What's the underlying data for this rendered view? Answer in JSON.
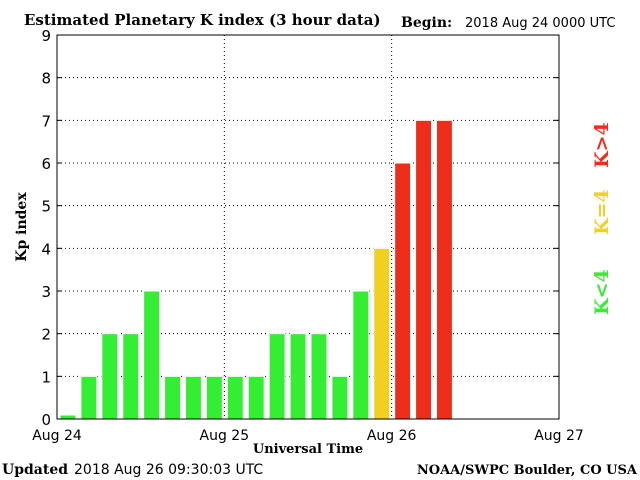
{
  "header": {
    "title": "Estimated Planetary K index (3 hour data)",
    "begin_label": "Begin:",
    "begin_value": "2018 Aug 24 0000 UTC"
  },
  "footer": {
    "updated_label": "Updated",
    "updated_value": "2018 Aug 26 09:30:03 UTC",
    "credit": "NOAA/SWPC Boulder, CO USA"
  },
  "legend": [
    {
      "label": "K<4",
      "color": "#33ee33"
    },
    {
      "label": "K=4",
      "color": "#f0d020"
    },
    {
      "label": "K>4",
      "color": "#ee2d1a"
    }
  ],
  "colors": {
    "below_4": "#33ee33",
    "equal_4": "#f0d020",
    "above_4": "#ee2d1a",
    "bar_outline": "#ffffff",
    "grid": "#000000"
  },
  "chart_data": {
    "type": "bar",
    "title": "Estimated Planetary K index (3 hour data)",
    "xlabel": "Universal Time",
    "ylabel": "Kp index",
    "ylim": [
      0,
      9
    ],
    "yticks": [
      "0",
      "1",
      "2",
      "3",
      "4",
      "5",
      "6",
      "7",
      "8",
      "9"
    ],
    "xticks": [
      "Aug 24",
      "Aug 25",
      "Aug 26",
      "Aug 27"
    ],
    "interval_hours": 3,
    "days_shown": 3,
    "grid": "dotted",
    "legend_placement": "right",
    "values": [
      0,
      1,
      2,
      2,
      3,
      1,
      1,
      1,
      1,
      1,
      2,
      2,
      2,
      1,
      3,
      4,
      6,
      7,
      7
    ]
  }
}
